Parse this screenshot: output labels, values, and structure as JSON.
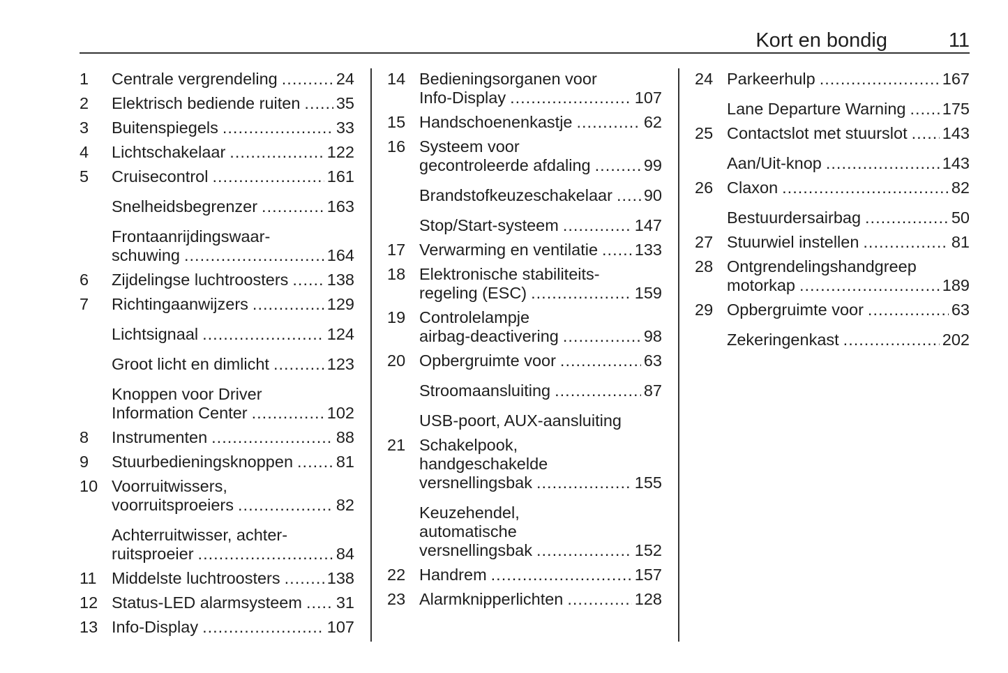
{
  "header": {
    "title": "Kort en bondig",
    "page_number": "11"
  },
  "columns": [
    [
      {
        "num": "1",
        "lines": [
          "Centrale vergrendeling"
        ],
        "page": "24"
      },
      {
        "num": "2",
        "lines": [
          "Elektrisch bediende ruiten"
        ],
        "page": "35"
      },
      {
        "num": "3",
        "lines": [
          "Buitenspiegels"
        ],
        "page": "33"
      },
      {
        "num": "4",
        "lines": [
          "Lichtschakelaar"
        ],
        "page": "122"
      },
      {
        "num": "5",
        "lines": [
          "Cruisecontrol"
        ],
        "page": "161"
      },
      {
        "num": "",
        "lines": [
          "Snelheidsbegrenzer"
        ],
        "page": "163"
      },
      {
        "num": "",
        "lines": [
          "Frontaanrijdingswaar-",
          "schuwing"
        ],
        "page": "164"
      },
      {
        "num": "6",
        "lines": [
          "Zijdelingse luchtroosters"
        ],
        "page": "138"
      },
      {
        "num": "7",
        "lines": [
          "Richtingaanwijzers"
        ],
        "page": "129"
      },
      {
        "num": "",
        "lines": [
          "Lichtsignaal"
        ],
        "page": "124"
      },
      {
        "num": "",
        "lines": [
          "Groot licht en dimlicht"
        ],
        "page": "123"
      },
      {
        "num": "",
        "lines": [
          "Knoppen voor Driver",
          "Information Center"
        ],
        "page": "102"
      },
      {
        "num": "8",
        "lines": [
          "Instrumenten"
        ],
        "page": "88"
      },
      {
        "num": "9",
        "lines": [
          "Stuurbedieningsknoppen"
        ],
        "page": "81"
      },
      {
        "num": "10",
        "lines": [
          "Voorruitwissers,",
          "voorruitsproeiers"
        ],
        "page": "82"
      },
      {
        "num": "",
        "lines": [
          "Achterruitwisser, achter-",
          "ruitsproeier"
        ],
        "page": "84"
      },
      {
        "num": "11",
        "lines": [
          "Middelste luchtroosters"
        ],
        "page": "138"
      },
      {
        "num": "12",
        "lines": [
          "Status-LED alarmsysteem"
        ],
        "page": "31"
      },
      {
        "num": "13",
        "lines": [
          "Info-Display"
        ],
        "page": "107"
      }
    ],
    [
      {
        "num": "14",
        "lines": [
          "Bedieningsorganen voor",
          "Info-Display"
        ],
        "page": "107"
      },
      {
        "num": "15",
        "lines": [
          "Handschoenenkastje"
        ],
        "page": "62"
      },
      {
        "num": "16",
        "lines": [
          "Systeem voor",
          "gecontroleerde afdaling"
        ],
        "page": "99"
      },
      {
        "num": "",
        "lines": [
          "Brandstofkeuzeschakelaar"
        ],
        "page": "90"
      },
      {
        "num": "",
        "lines": [
          "Stop/Start-systeem"
        ],
        "page": "147"
      },
      {
        "num": "17",
        "lines": [
          "Verwarming en ventilatie"
        ],
        "page": "133"
      },
      {
        "num": "18",
        "lines": [
          "Elektronische stabiliteits-",
          "regeling (ESC)"
        ],
        "page": "159"
      },
      {
        "num": "19",
        "lines": [
          "Controlelampje",
          "airbag-deactivering"
        ],
        "page": "98"
      },
      {
        "num": "20",
        "lines": [
          "Opbergruimte voor"
        ],
        "page": "63"
      },
      {
        "num": "",
        "lines": [
          "Stroomaansluiting"
        ],
        "page": "87"
      },
      {
        "num": "",
        "lines": [
          "USB-poort, AUX-aansluiting"
        ],
        "page": ""
      },
      {
        "num": "21",
        "lines": [
          "Schakelpook,",
          "handgeschakelde",
          "versnellingsbak"
        ],
        "page": "155"
      },
      {
        "num": "",
        "lines": [
          "Keuzehendel,",
          "automatische",
          "versnellingsbak"
        ],
        "page": "152"
      },
      {
        "num": "22",
        "lines": [
          "Handrem"
        ],
        "page": "157"
      },
      {
        "num": "23",
        "lines": [
          "Alarmknipperlichten"
        ],
        "page": "128"
      }
    ],
    [
      {
        "num": "24",
        "lines": [
          "Parkeerhulp"
        ],
        "page": "167"
      },
      {
        "num": "",
        "lines": [
          "Lane Departure Warning"
        ],
        "page": "175"
      },
      {
        "num": "25",
        "lines": [
          "Contactslot met stuurslot"
        ],
        "page": "143"
      },
      {
        "num": "",
        "lines": [
          "Aan/Uit-knop"
        ],
        "page": "143"
      },
      {
        "num": "26",
        "lines": [
          "Claxon"
        ],
        "page": "82"
      },
      {
        "num": "",
        "lines": [
          "Bestuurdersairbag"
        ],
        "page": "50"
      },
      {
        "num": "27",
        "lines": [
          "Stuurwiel instellen"
        ],
        "page": "81"
      },
      {
        "num": "28",
        "lines": [
          "Ontgrendelingshandgreep",
          "motorkap"
        ],
        "page": "189"
      },
      {
        "num": "29",
        "lines": [
          "Opbergruimte voor"
        ],
        "page": "63"
      },
      {
        "num": "",
        "lines": [
          "Zekeringenkast"
        ],
        "page": "202"
      }
    ]
  ]
}
